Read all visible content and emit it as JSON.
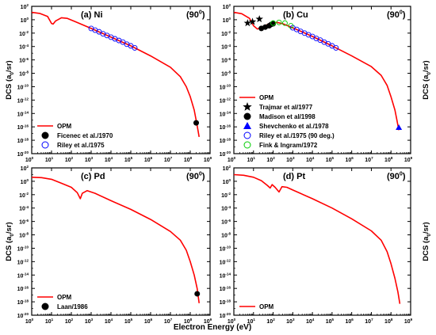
{
  "figure": {
    "shared_xlabel": "Electron Energy (eV)",
    "shared_ylabel_main": "DCS (a",
    "shared_ylabel_sub": "0",
    "shared_ylabel_tail": "/sr)"
  },
  "chart_data": [
    {
      "type": "line",
      "panel": "(a) Ni",
      "angle": "(90",
      "angle_sup": "0",
      "angle_tail": ")",
      "xscale": "log",
      "yscale": "log",
      "xlim_exp": [
        0,
        9
      ],
      "ylim_exp": [
        -20,
        2
      ],
      "ylabel_side": "left",
      "xticks": [
        "10^0",
        "10^1",
        "10^2",
        "10^3",
        "10^4",
        "10^5",
        "10^6",
        "10^7",
        "10^8",
        "10^9"
      ],
      "yticks": [
        "10^2",
        "10^0",
        "10^-2",
        "10^-4",
        "10^-6",
        "10^-8",
        "10^-10",
        "10^-12",
        "10^-14",
        "10^-16",
        "10^-18",
        "10^-20"
      ],
      "legend_position": "bottom-left",
      "series": [
        {
          "name": "OPM",
          "kind": "line",
          "color": "#ff0000",
          "log_points": [
            [
              0,
              1.1
            ],
            [
              0.4,
              0.95
            ],
            [
              0.8,
              0.5
            ],
            [
              1.0,
              -0.55
            ],
            [
              1.08,
              -0.65
            ],
            [
              1.2,
              -0.2
            ],
            [
              1.5,
              0.3
            ],
            [
              1.8,
              0.2
            ],
            [
              2.2,
              -0.3
            ],
            [
              3,
              -1.3
            ],
            [
              4,
              -2.6
            ],
            [
              5,
              -3.9
            ],
            [
              6,
              -5.4
            ],
            [
              7,
              -7.1
            ],
            [
              7.5,
              -8.5
            ],
            [
              7.8,
              -10
            ],
            [
              8.0,
              -11.5
            ],
            [
              8.2,
              -13.5
            ],
            [
              8.35,
              -15.8
            ],
            [
              8.45,
              -17.5
            ]
          ]
        },
        {
          "name": "Ficenec et al./1970",
          "kind": "filled-circle",
          "color": "#000000",
          "log_points": [
            [
              8.3,
              -15.4
            ]
          ]
        },
        {
          "name": "Riley et al./1975",
          "kind": "open-circle",
          "color": "#0000ff",
          "log_points": [
            [
              3,
              -1.3
            ],
            [
              3.2,
              -1.55
            ],
            [
              3.4,
              -1.8
            ],
            [
              3.6,
              -2.1
            ],
            [
              3.8,
              -2.35
            ],
            [
              4,
              -2.6
            ],
            [
              4.2,
              -2.85
            ],
            [
              4.4,
              -3.1
            ],
            [
              4.6,
              -3.35
            ],
            [
              4.8,
              -3.65
            ],
            [
              5,
              -3.9
            ],
            [
              5.2,
              -4.2
            ]
          ]
        }
      ]
    },
    {
      "type": "line",
      "panel": "(b) Cu",
      "angle": "(90",
      "angle_sup": "0",
      "angle_tail": ")",
      "xscale": "log",
      "yscale": "log",
      "xlim_exp": [
        0,
        9
      ],
      "ylim_exp": [
        -20,
        2
      ],
      "ylabel_side": "right",
      "xticks": [
        "10^0",
        "10^1",
        "10^2",
        "10^3",
        "10^4",
        "10^5",
        "10^6",
        "10^7",
        "10^8",
        "10^9"
      ],
      "yticks": [
        "10^2",
        "10^0",
        "10^-2",
        "10^-4",
        "10^-6",
        "10^-8",
        "10^-10",
        "10^-12",
        "10^-14",
        "10^-16",
        "10^-18",
        "10^-20"
      ],
      "legend_position": "bottom-left",
      "series": [
        {
          "name": "OPM",
          "kind": "line",
          "color": "#ff0000",
          "log_points": [
            [
              0,
              1.1
            ],
            [
              0.4,
              0.9
            ],
            [
              0.8,
              0.2
            ],
            [
              1.0,
              -0.9
            ],
            [
              1.2,
              -1.4
            ],
            [
              1.5,
              -1.0
            ],
            [
              1.8,
              -0.6
            ],
            [
              2.2,
              -0.4
            ],
            [
              2.5,
              -0.6
            ],
            [
              3,
              -1.2
            ],
            [
              4,
              -2.5
            ],
            [
              5,
              -3.9
            ],
            [
              6,
              -5.4
            ],
            [
              7,
              -7.0
            ],
            [
              7.5,
              -8.3
            ],
            [
              7.8,
              -9.8
            ],
            [
              8.0,
              -11.5
            ],
            [
              8.2,
              -13.5
            ],
            [
              8.3,
              -15
            ],
            [
              8.4,
              -16.5
            ]
          ]
        },
        {
          "name": "Trajmar et al/1977",
          "kind": "star",
          "color": "#000000",
          "log_points": [
            [
              0.7,
              -0.5
            ],
            [
              0.95,
              -0.3
            ],
            [
              1.3,
              0.1
            ]
          ]
        },
        {
          "name": "Madison et al/1998",
          "kind": "filled-circle",
          "color": "#000000",
          "log_points": [
            [
              1.4,
              -1.3
            ],
            [
              1.6,
              -1.1
            ],
            [
              1.8,
              -0.9
            ],
            [
              1.9,
              -0.7
            ],
            [
              2.0,
              -0.6
            ]
          ]
        },
        {
          "name": "Shevchenko et al./1978",
          "kind": "triangle",
          "color": "#0000ff",
          "log_points": [
            [
              8.4,
              -16.1
            ]
          ]
        },
        {
          "name": "Riley et al./1975 (90 deg.)",
          "kind": "open-circle",
          "color": "#0000ff",
          "log_points": [
            [
              3,
              -1.2
            ],
            [
              3.2,
              -1.45
            ],
            [
              3.4,
              -1.75
            ],
            [
              3.6,
              -2.0
            ],
            [
              3.8,
              -2.25
            ],
            [
              4,
              -2.5
            ],
            [
              4.2,
              -2.8
            ],
            [
              4.4,
              -3.05
            ],
            [
              4.6,
              -3.35
            ],
            [
              4.8,
              -3.6
            ],
            [
              5,
              -3.9
            ],
            [
              5.2,
              -4.2
            ]
          ]
        },
        {
          "name": "Fink & Ingram/1972",
          "kind": "open-circle",
          "color": "#00cc00",
          "log_points": [
            [
              2.0,
              -0.5
            ],
            [
              2.3,
              -0.4
            ],
            [
              2.6,
              -0.5
            ],
            [
              2.9,
              -0.9
            ]
          ]
        }
      ]
    },
    {
      "type": "line",
      "panel": "(c) Pd",
      "angle": "(90",
      "angle_sup": "0",
      "angle_tail": ")",
      "xscale": "log",
      "yscale": "log",
      "xlim_exp": [
        0,
        9
      ],
      "ylim_exp": [
        -20,
        2
      ],
      "ylabel_side": "left",
      "xticks": [
        "10^0",
        "10^1",
        "10^2",
        "10^3",
        "10^4",
        "10^5",
        "10^6",
        "10^7",
        "10^8",
        "10^9"
      ],
      "yticks": [
        "10^2",
        "10^0",
        "10^-2",
        "10^-4",
        "10^-6",
        "10^-8",
        "10^-10",
        "10^-12",
        "10^-14",
        "10^-16",
        "10^-18",
        "10^-20"
      ],
      "legend_position": "bottom-left",
      "series": [
        {
          "name": "OPM",
          "kind": "line",
          "color": "#ff0000",
          "log_points": [
            [
              0,
              0.6
            ],
            [
              0.5,
              0.55
            ],
            [
              1.0,
              0.3
            ],
            [
              1.5,
              -0.3
            ],
            [
              2.0,
              -0.9
            ],
            [
              2.3,
              -1.7
            ],
            [
              2.45,
              -2.6
            ],
            [
              2.55,
              -1.8
            ],
            [
              2.8,
              -1.4
            ],
            [
              3.2,
              -1.8
            ],
            [
              4,
              -2.9
            ],
            [
              5,
              -4.2
            ],
            [
              6,
              -5.7
            ],
            [
              7,
              -7.5
            ],
            [
              7.5,
              -8.8
            ],
            [
              7.8,
              -10.3
            ],
            [
              8.0,
              -12
            ],
            [
              8.2,
              -14
            ],
            [
              8.35,
              -16
            ],
            [
              8.45,
              -18.2
            ]
          ]
        },
        {
          "name": "Laan/1986",
          "kind": "filled-circle",
          "color": "#000000",
          "log_points": [
            [
              8.35,
              -16.8
            ]
          ]
        }
      ]
    },
    {
      "type": "line",
      "panel": "(d) Pt",
      "angle": "(90",
      "angle_sup": "0",
      "angle_tail": ")",
      "xscale": "log",
      "yscale": "log",
      "xlim_exp": [
        0,
        9
      ],
      "ylim_exp": [
        -20,
        2
      ],
      "ylabel_side": "right",
      "xticks": [
        "10^0",
        "10^1",
        "10^2",
        "10^3",
        "10^4",
        "10^5",
        "10^6",
        "10^7",
        "10^8",
        "10^9"
      ],
      "yticks": [
        "10^2",
        "10^0",
        "10^-2",
        "10^-4",
        "10^-6",
        "10^-8",
        "10^-10",
        "10^-12",
        "10^-14",
        "10^-16",
        "10^-18",
        "10^-20"
      ],
      "legend_position": "bottom-left",
      "series": [
        {
          "name": "OPM",
          "kind": "line",
          "color": "#ff0000",
          "log_points": [
            [
              0,
              1.0
            ],
            [
              0.5,
              0.9
            ],
            [
              1.0,
              0.6
            ],
            [
              1.4,
              0.1
            ],
            [
              1.7,
              -0.6
            ],
            [
              1.85,
              -1.0
            ],
            [
              1.95,
              -0.5
            ],
            [
              2.1,
              -0.9
            ],
            [
              2.3,
              -1.6
            ],
            [
              2.45,
              -0.8
            ],
            [
              2.7,
              -0.9
            ],
            [
              3,
              -1.3
            ],
            [
              4,
              -2.6
            ],
            [
              5,
              -4.0
            ],
            [
              6,
              -5.6
            ],
            [
              7,
              -7.4
            ],
            [
              7.5,
              -8.8
            ],
            [
              7.8,
              -10.5
            ],
            [
              8.0,
              -12.3
            ],
            [
              8.2,
              -14.5
            ],
            [
              8.35,
              -16.5
            ],
            [
              8.45,
              -18.3
            ]
          ]
        }
      ]
    }
  ]
}
